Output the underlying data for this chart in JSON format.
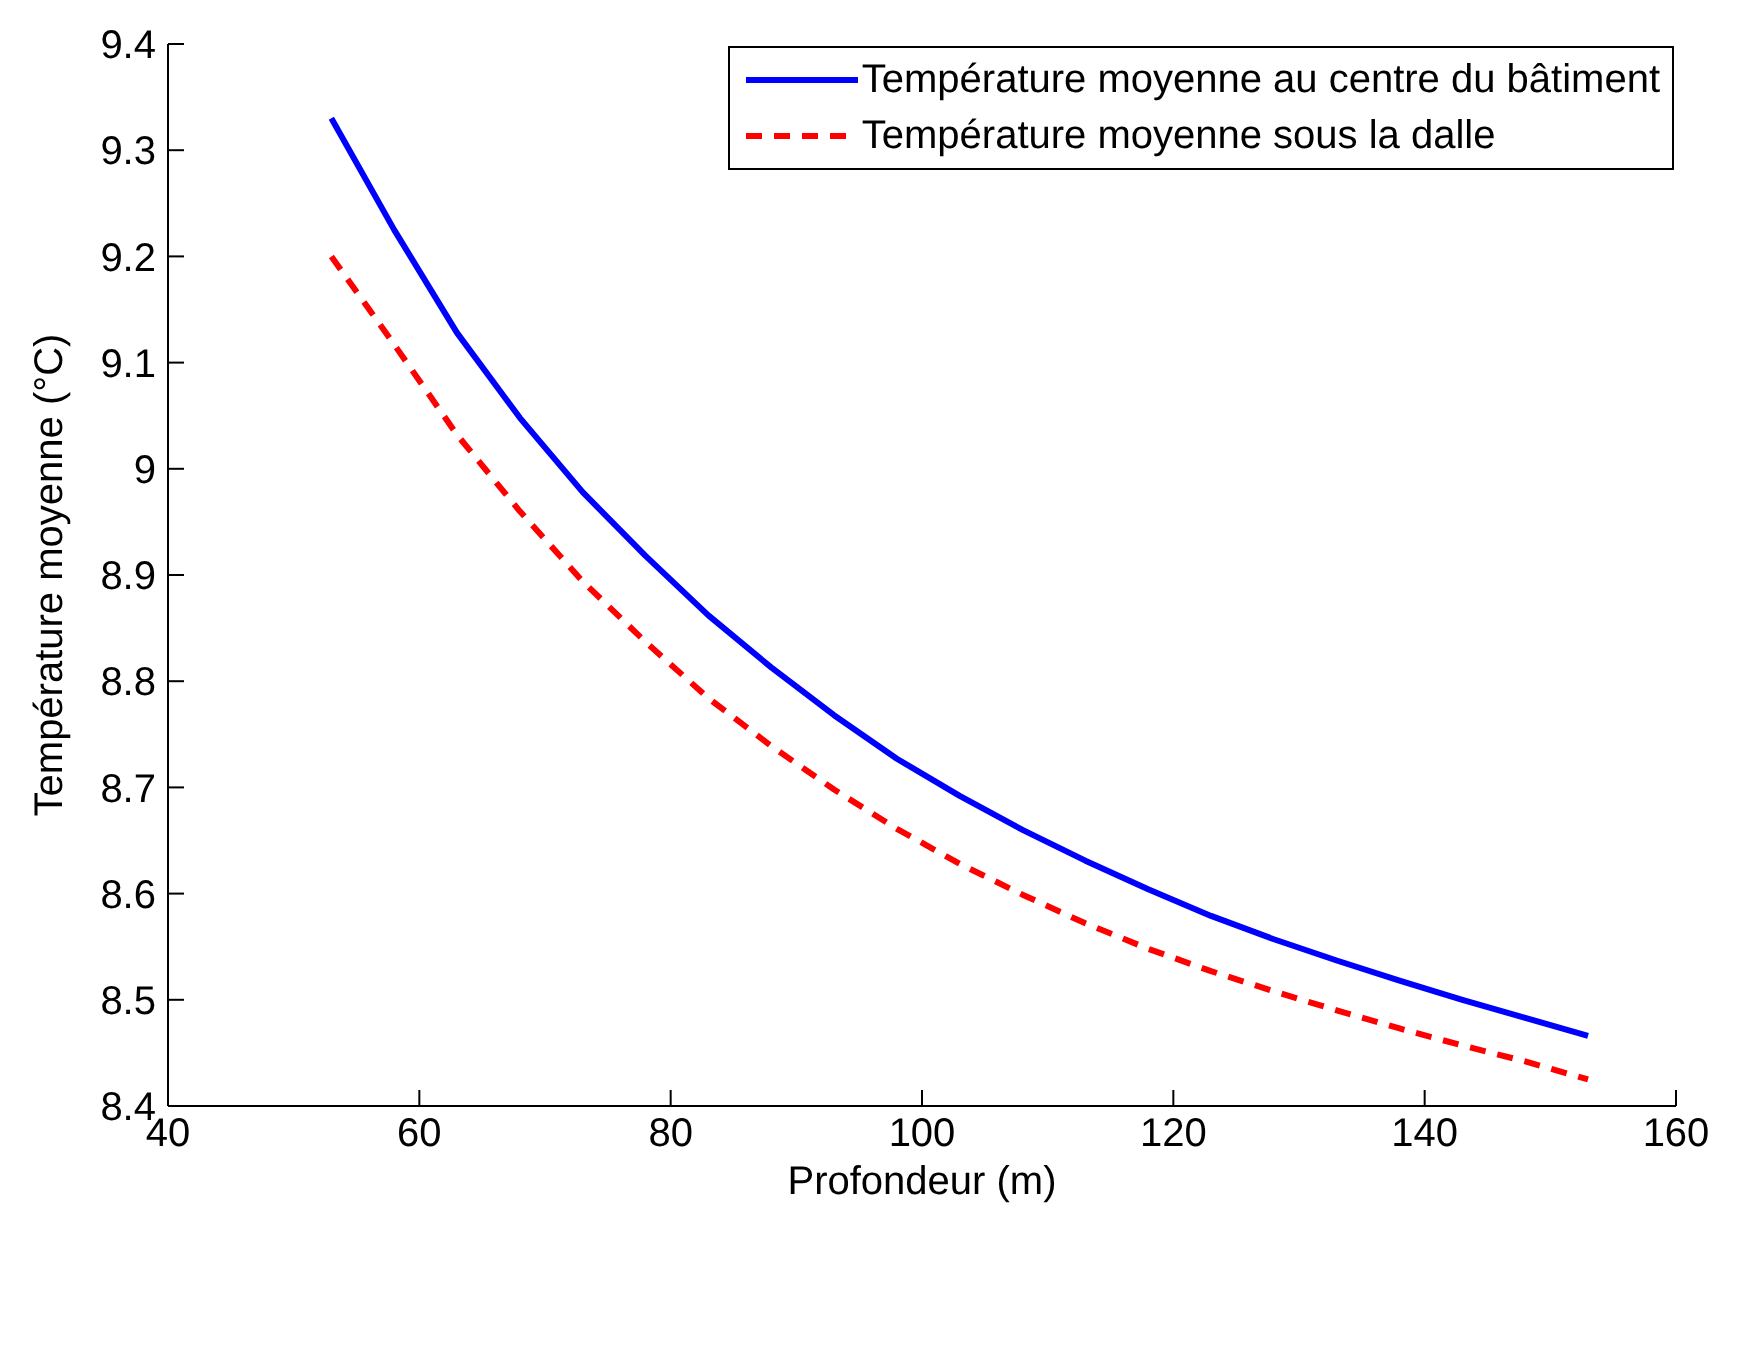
{
  "chart_data": {
    "type": "line",
    "xlabel": "Profondeur (m)",
    "ylabel": "Température moyenne (°C)",
    "x": [
      53,
      58,
      63,
      68,
      73,
      78,
      83,
      88,
      93,
      98,
      103,
      108,
      113,
      118,
      123,
      128,
      133,
      138,
      143,
      148,
      153
    ],
    "series": [
      {
        "name": "Température moyenne au centre du bâtiment",
        "color": "#0000ff",
        "line_style": "solid",
        "values": [
          9.33,
          9.225,
          9.128,
          9.048,
          8.978,
          8.918,
          8.862,
          8.813,
          8.768,
          8.727,
          8.692,
          8.66,
          8.631,
          8.604,
          8.579,
          8.557,
          8.537,
          8.518,
          8.5,
          8.483,
          8.466
        ]
      },
      {
        "name": "Température moyenne sous la dalle",
        "color": "#ff0000",
        "line_style": "dashed",
        "values": [
          9.2,
          9.117,
          9.032,
          8.96,
          8.894,
          8.837,
          8.784,
          8.739,
          8.698,
          8.661,
          8.628,
          8.599,
          8.572,
          8.548,
          8.527,
          8.508,
          8.49,
          8.473,
          8.457,
          8.442,
          8.425
        ]
      }
    ],
    "xlim": [
      40,
      160
    ],
    "xticks": [
      40,
      60,
      80,
      100,
      120,
      140,
      160
    ],
    "ylim": [
      8.4,
      9.4
    ],
    "yticks": [
      8.4,
      {
        "value": 8.5,
        "label": "8.5"
      },
      8.6,
      8.7,
      8.8,
      8.9,
      {
        "value": 9,
        "label": "9"
      },
      9.1,
      9.2,
      9.3,
      9.4
    ],
    "legend": "top right",
    "grid": false,
    "marker": "none"
  }
}
